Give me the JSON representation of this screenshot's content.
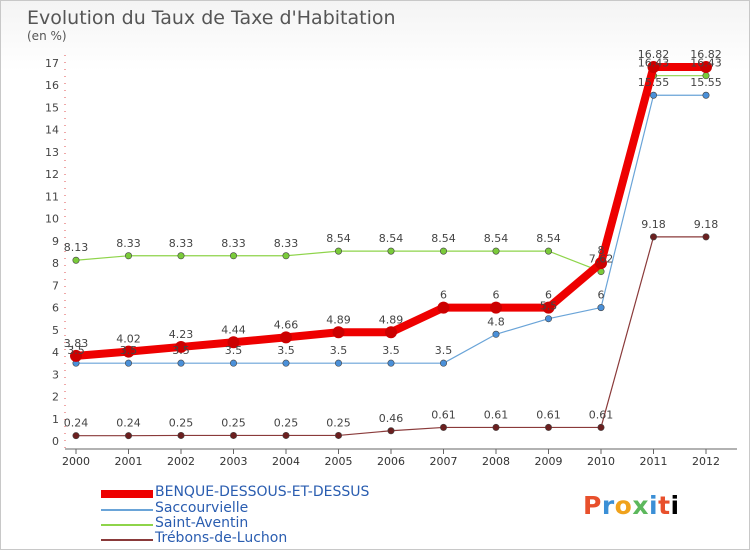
{
  "header": {
    "title": "Evolution du Taux de Taxe d'Habitation",
    "unit": "(en %)"
  },
  "brand": {
    "name": "Proxiti"
  },
  "chart_data": {
    "type": "line",
    "x": [
      "2000",
      "2001",
      "2002",
      "2003",
      "2004",
      "2005",
      "2006",
      "2007",
      "2008",
      "2009",
      "2010",
      "2011",
      "2012"
    ],
    "ylim": [
      0,
      17
    ],
    "yticks": [
      0,
      1,
      2,
      3,
      4,
      5,
      6,
      7,
      8,
      9,
      10,
      11,
      12,
      13,
      14,
      15,
      16,
      17
    ],
    "grid": false,
    "legend_position": "bottom-left",
    "series": [
      {
        "name": "BENQUE-DESSOUS-ET-DESSUS",
        "color": "#ee0000",
        "width": 8,
        "marker": "#cc0000",
        "values": [
          3.83,
          4.02,
          4.23,
          4.44,
          4.66,
          4.89,
          4.89,
          6,
          6,
          6,
          8,
          16.82,
          16.82
        ],
        "labels": [
          "3.83",
          "4.02",
          "4.23",
          "4.44",
          "4.66",
          "4.89",
          "4.89",
          "6",
          "6",
          "6",
          "8",
          "16.82",
          "16.82"
        ]
      },
      {
        "name": "Saccourvielle",
        "color": "#6aa4d8",
        "width": 1.2,
        "marker": "#4a90d9",
        "values": [
          3.5,
          3.5,
          3.5,
          3.5,
          3.5,
          3.5,
          3.5,
          3.5,
          4.8,
          5.5,
          6,
          15.55,
          15.55
        ],
        "labels": [
          "3.5",
          "3.5",
          "3.5",
          "3.5",
          "3.5",
          "3.5",
          "3.5",
          "3.5",
          "4.8",
          "5.5",
          "6",
          "15.55",
          "15.55"
        ]
      },
      {
        "name": "Saint-Aventin",
        "color": "#8ed44a",
        "width": 1.2,
        "marker": "#7acb3a",
        "values": [
          8.13,
          8.33,
          8.33,
          8.33,
          8.33,
          8.54,
          8.54,
          8.54,
          8.54,
          8.54,
          7.62,
          16.43,
          16.43
        ],
        "labels": [
          "8.13",
          "8.33",
          "8.33",
          "8.33",
          "8.33",
          "8.54",
          "8.54",
          "8.54",
          "8.54",
          "8.54",
          "7.62",
          "16.43",
          "16.43"
        ]
      },
      {
        "name": "Trébons-de-Luchon",
        "color": "#8a3a3a",
        "width": 1.2,
        "marker": "#6b1f1f",
        "values": [
          0.24,
          0.24,
          0.25,
          0.25,
          0.25,
          0.25,
          0.46,
          0.61,
          0.61,
          0.61,
          0.61,
          9.18,
          9.18
        ],
        "labels": [
          "0.24",
          "0.24",
          "0.25",
          "0.25",
          "0.25",
          "0.25",
          "0.46",
          "0.61",
          "0.61",
          "0.61",
          "0.61",
          "9.18",
          "9.18"
        ]
      }
    ]
  }
}
